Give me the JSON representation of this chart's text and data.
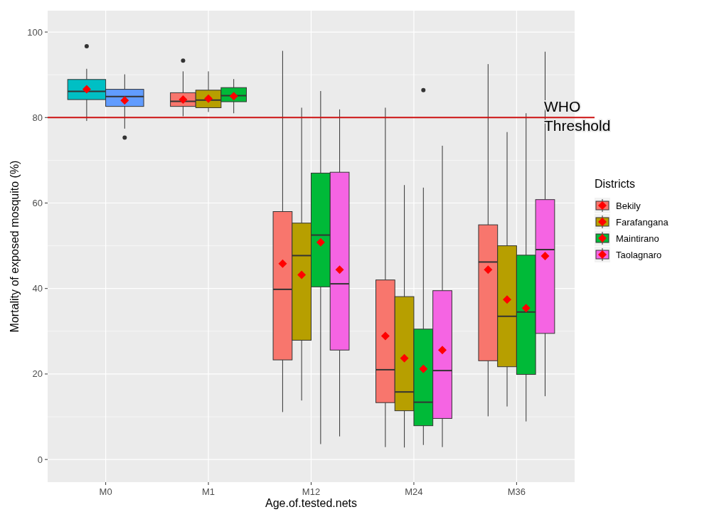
{
  "chart_data": {
    "type": "box",
    "xlabel": "Age.of.tested.nets",
    "ylabel": "Mortality of exposed mosquito (%)",
    "legend_title": "Districts",
    "legend": "right",
    "grid": true,
    "categories": [
      "M0",
      "M1",
      "M12",
      "M24",
      "M36"
    ],
    "ylim": [
      -5.3,
      105
    ],
    "yticks": [
      0,
      20,
      40,
      60,
      80,
      100
    ],
    "ref_lines": [
      {
        "axis": "y",
        "value": 80,
        "label": "WHO Threshold",
        "color": "#cc1111"
      }
    ],
    "series": [
      {
        "name": "Bekily",
        "color": "#f8766d",
        "boxes": [
          null,
          {
            "low": 80.3,
            "q1": 82.6,
            "median": 83.8,
            "q3": 85.8,
            "high": 90.8,
            "mean": 84.2,
            "outliers": [
              93.3
            ]
          },
          {
            "low": 11.1,
            "q1": 23.3,
            "median": 39.8,
            "q3": 58.0,
            "high": 95.6,
            "mean": 45.8
          },
          {
            "low": 2.9,
            "q1": 13.3,
            "median": 21.0,
            "q3": 42.0,
            "high": 82.3,
            "mean": 28.9
          },
          {
            "low": 10.1,
            "q1": 23.1,
            "median": 46.2,
            "q3": 54.9,
            "high": 92.5,
            "mean": 44.4
          }
        ]
      },
      {
        "name": "Farafangana",
        "color": "#b79f00",
        "boxes": [
          null,
          {
            "low": 81.3,
            "q1": 82.3,
            "median": 84.1,
            "q3": 86.4,
            "high": 90.8,
            "mean": 84.4
          },
          {
            "low": 13.8,
            "q1": 27.9,
            "median": 47.7,
            "q3": 55.3,
            "high": 82.3,
            "mean": 43.2
          },
          {
            "low": 2.8,
            "q1": 11.4,
            "median": 15.8,
            "q3": 38.1,
            "high": 64.2,
            "mean": 23.7
          },
          {
            "low": 12.4,
            "q1": 21.7,
            "median": 33.5,
            "q3": 50.0,
            "high": 76.6,
            "mean": 37.4
          }
        ]
      },
      {
        "name": "Maintirano",
        "color": "#00ba38",
        "boxes": [
          null,
          {
            "low": 81.0,
            "q1": 83.7,
            "median": 85.1,
            "q3": 87.0,
            "high": 89.0,
            "mean": 85.0
          },
          {
            "low": 3.6,
            "q1": 40.4,
            "median": 52.5,
            "q3": 67.0,
            "high": 86.2,
            "mean": 50.8
          },
          {
            "low": 3.4,
            "q1": 7.9,
            "median": 13.4,
            "q3": 30.5,
            "high": 63.6,
            "mean": 21.2,
            "outliers": [
              86.4
            ]
          },
          {
            "low": 8.9,
            "q1": 19.9,
            "median": 34.5,
            "q3": 47.8,
            "high": 81.0,
            "mean": 35.4
          }
        ]
      },
      {
        "color": "#00bfc4",
        "boxes": [
          {
            "low": 79.2,
            "q1": 84.2,
            "median": 86.1,
            "q3": 88.9,
            "high": 91.4,
            "mean": 86.6,
            "outliers": [
              96.7
            ]
          },
          null,
          null,
          null,
          null
        ]
      },
      {
        "color": "#619cff",
        "boxes": [
          {
            "low": 77.4,
            "q1": 82.6,
            "median": 84.9,
            "q3": 86.6,
            "high": 90.1,
            "mean": 84.0,
            "outliers": [
              75.3
            ]
          },
          null,
          null,
          null,
          null
        ]
      },
      {
        "name": "Taolagnaro",
        "color": "#f564e3",
        "boxes": [
          null,
          null,
          {
            "low": 5.4,
            "q1": 25.6,
            "median": 41.1,
            "q3": 67.2,
            "high": 81.9,
            "mean": 44.4
          },
          {
            "low": 2.9,
            "q1": 9.6,
            "median": 20.8,
            "q3": 39.5,
            "high": 73.4,
            "mean": 25.6
          },
          {
            "low": 14.8,
            "q1": 29.5,
            "median": 49.1,
            "q3": 60.8,
            "high": 95.4,
            "mean": 47.6
          }
        ]
      }
    ]
  }
}
